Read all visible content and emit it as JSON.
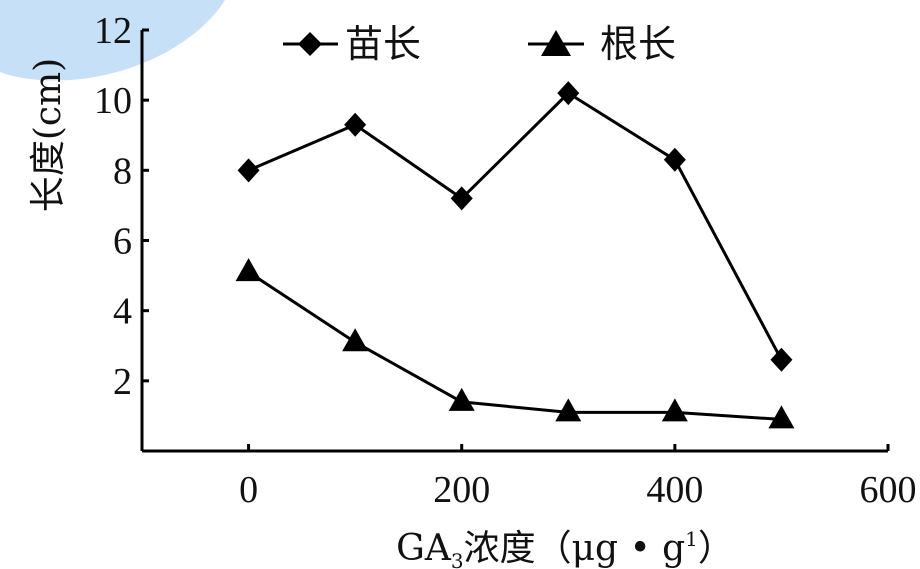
{
  "chart_data": {
    "type": "line",
    "xlabel_main": "GA",
    "xlabel_sub": "3",
    "xlabel_rest": "浓度（μg • g",
    "xlabel_sup": "1",
    "xlabel_end": "）",
    "ylabel": "长度(cm)",
    "xlim": [
      -100,
      600
    ],
    "ylim": [
      0,
      12
    ],
    "xticks": [
      "0",
      "200",
      "400",
      "600"
    ],
    "xtick_values": [
      0,
      200,
      400,
      600
    ],
    "yticks": [
      "2",
      "4",
      "6",
      "8",
      "10",
      "12"
    ],
    "ytick_values": [
      2,
      4,
      6,
      8,
      10,
      12
    ],
    "legend_position": "top",
    "series": [
      {
        "name": "苗长",
        "marker": "diamond",
        "x": [
          0,
          100,
          200,
          300,
          400,
          500
        ],
        "values": [
          8.0,
          9.3,
          7.2,
          10.2,
          8.3,
          2.6
        ]
      },
      {
        "name": "根长",
        "marker": "triangle",
        "x": [
          0,
          100,
          200,
          300,
          400,
          500
        ],
        "values": [
          5.1,
          3.1,
          1.4,
          1.1,
          1.1,
          0.9
        ]
      }
    ],
    "grid": false,
    "color": "#000000"
  }
}
